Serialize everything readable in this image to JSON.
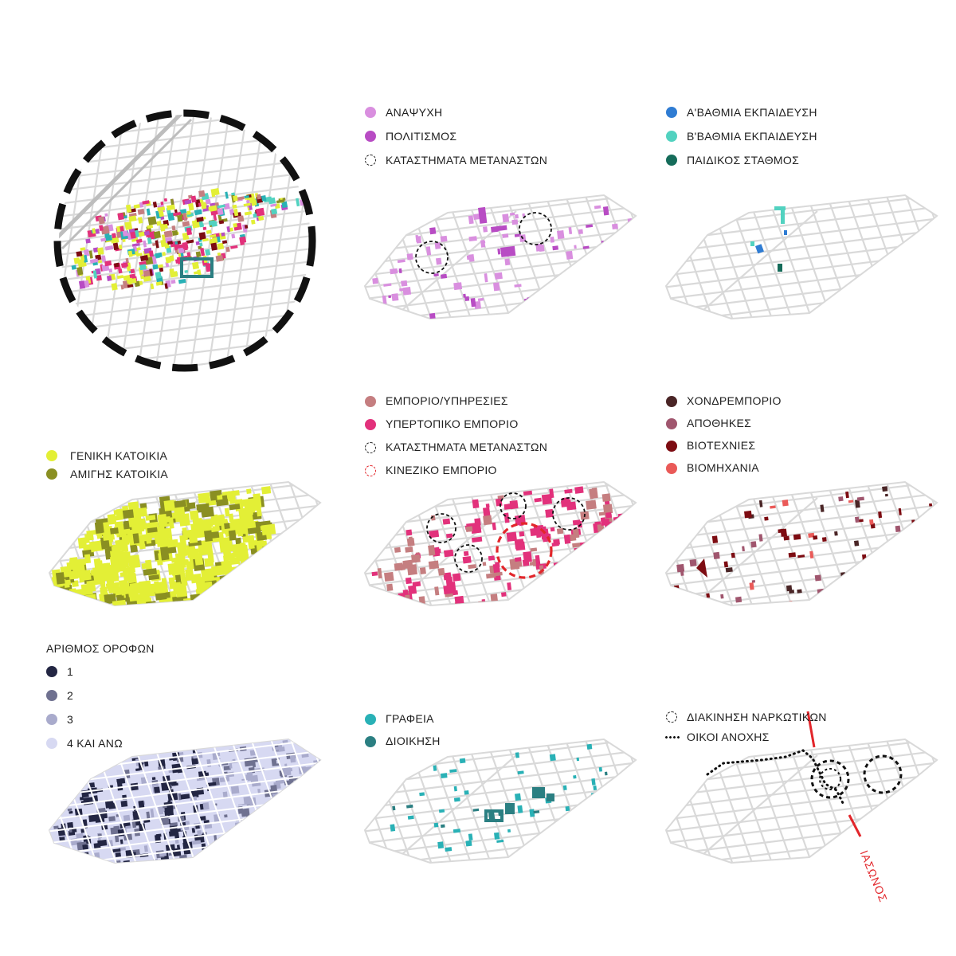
{
  "colors": {
    "anapsyxi": "#d98fdf",
    "politismos": "#b84cc4",
    "a_ekp": "#2f7cd3",
    "b_ekp": "#52d2c0",
    "paidikos": "#156c5a",
    "geniki": "#e3ef36",
    "amigis": "#8a8f22",
    "emporio": "#c57e80",
    "yperto": "#e2317b",
    "kinezika": "#e2262b",
    "xondro": "#4a2526",
    "apothikes": "#a0566e",
    "viotexnies": "#7d0c12",
    "viomixania": "#ea5a58",
    "f1": "#232643",
    "f2": "#6f7190",
    "f3": "#a9abcc",
    "f4": "#d7d9f2",
    "grafeia": "#29b1b6",
    "dioikisi": "#2b7f82",
    "street": "#d9d9d9",
    "iasonos": "#e2262b"
  },
  "legends": {
    "leisure": {
      "items": [
        {
          "label": "ΑΝΑΨΥΧΗ",
          "color": "#d98fdf",
          "icon": "filled-circle"
        },
        {
          "label": "ΠΟΛΙΤΙΣΜΟΣ",
          "color": "#b84cc4",
          "icon": "filled-circle"
        },
        {
          "label": "ΚΑΤΑΣΤΗΜΑΤΑ ΜΕΤΑΝΑΣΤΩΝ",
          "color": "#222222",
          "icon": "dashed-circle"
        }
      ]
    },
    "education": {
      "items": [
        {
          "label": "Α'ΒΑΘΜΙΑ ΕΚΠΑΙΔΕΥΣΗ",
          "color": "#2f7cd3",
          "icon": "filled-circle"
        },
        {
          "label": "Β'ΒΑΘΜΙΑ ΕΚΠΑΙΔΕΥΣΗ",
          "color": "#52d2c0",
          "icon": "filled-circle"
        },
        {
          "label": "ΠΑΙΔΙΚΟΣ ΣΤΑΘΜΟΣ",
          "color": "#156c5a",
          "icon": "filled-circle"
        }
      ]
    },
    "housing": {
      "items": [
        {
          "label": "ΓΕΝΙΚΗ ΚΑΤΟΙΚΙΑ",
          "color": "#e3ef36",
          "icon": "filled-circle"
        },
        {
          "label": "ΑΜΙΓΗΣ ΚΑΤΟΙΚΙΑ",
          "color": "#8a8f22",
          "icon": "filled-circle"
        }
      ]
    },
    "commerce": {
      "items": [
        {
          "label": "ΕΜΠΟΡΙΟ/ΥΠΗΡΕΣΙΕΣ",
          "color": "#c57e80",
          "icon": "filled-circle"
        },
        {
          "label": "ΥΠΕΡΤΟΠΙΚΟ ΕΜΠΟΡΙΟ",
          "color": "#e2317b",
          "icon": "filled-circle"
        },
        {
          "label": "ΚΑΤΑΣΤΗΜΑΤΑ ΜΕΤΑΝΑΣΤΩΝ",
          "color": "#222222",
          "icon": "dashed-circle"
        },
        {
          "label": "ΚΙΝΕΖΙΚΟ ΕΜΠΟΡΙΟ",
          "color": "#e2262b",
          "icon": "dashed-circle"
        }
      ]
    },
    "wholesale": {
      "items": [
        {
          "label": "ΧΟΝΔΡΕΜΠΟΡΙΟ",
          "color": "#4a2526",
          "icon": "filled-circle"
        },
        {
          "label": "ΑΠΟΘΗΚΕΣ",
          "color": "#a0566e",
          "icon": "filled-circle"
        },
        {
          "label": "ΒΙΟΤΕΧΝΙΕΣ",
          "color": "#7d0c12",
          "icon": "filled-circle"
        },
        {
          "label": "ΒΙΟΜΗΧΑΝΙΑ",
          "color": "#ea5a58",
          "icon": "filled-circle"
        }
      ]
    },
    "floors": {
      "title": "ΑΡΙΘΜΟΣ ΟΡΟΦΩΝ",
      "items": [
        {
          "label": "1",
          "color": "#232643",
          "icon": "filled-circle"
        },
        {
          "label": "2",
          "color": "#6f7190",
          "icon": "filled-circle"
        },
        {
          "label": "3",
          "color": "#a9abcc",
          "icon": "filled-circle"
        },
        {
          "label": "4 ΚΑΙ ΑΝΩ",
          "color": "#d7d9f2",
          "icon": "filled-circle"
        }
      ]
    },
    "offices": {
      "items": [
        {
          "label": "ΓΡΑΦΕΙΑ",
          "color": "#29b1b6",
          "icon": "filled-circle"
        },
        {
          "label": "ΔΙΟΙΚΗΣΗ",
          "color": "#2b7f82",
          "icon": "filled-circle"
        }
      ]
    },
    "drugs": {
      "items": [
        {
          "label": "ΔΙΑΚΙΝΗΣΗ ΝΑΡΚΩΤΙΚΩΝ",
          "color": "#222222",
          "icon": "dashed-circle"
        },
        {
          "label": "ΟΙΚΟΙ ΑΝΟΧΗΣ",
          "color": "#111111",
          "icon": "dotted-line"
        }
      ]
    }
  },
  "street_label": "ΙΑΣΩΝΟΣ"
}
